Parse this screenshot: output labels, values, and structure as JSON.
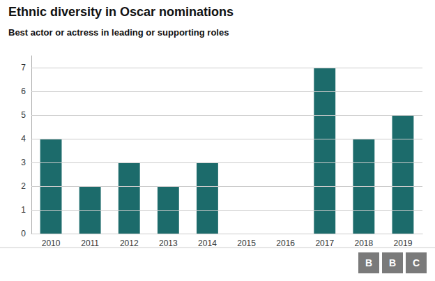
{
  "chart_data": {
    "type": "bar",
    "title": "Ethnic diversity in Oscar nominations",
    "subtitle": "Best actor or actress in leading or supporting roles",
    "categories": [
      "2010",
      "2011",
      "2012",
      "2013",
      "2014",
      "2015",
      "2016",
      "2017",
      "2018",
      "2019"
    ],
    "values": [
      4,
      2,
      3,
      2,
      3,
      0,
      0,
      7,
      4,
      5
    ],
    "color": "#1c6b6b",
    "ylim": [
      0,
      7.5
    ],
    "yticks": [
      0,
      1,
      2,
      3,
      4,
      5,
      6,
      7
    ],
    "grid": true,
    "annotations": [
      "B",
      "B",
      "C"
    ]
  }
}
